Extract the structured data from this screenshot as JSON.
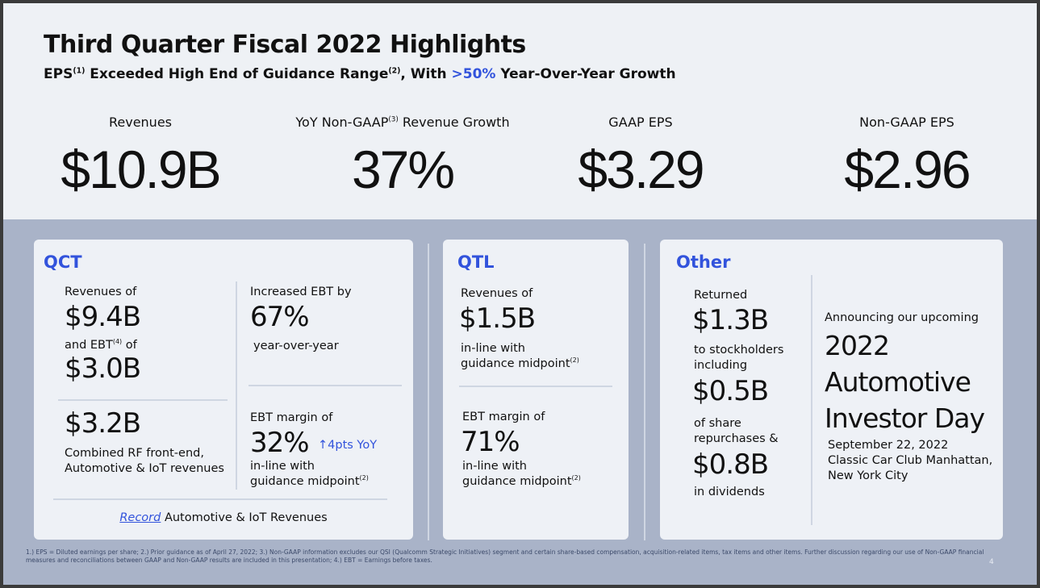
{
  "title": "Third Quarter Fiscal 2022 Highlights",
  "subtitle": {
    "a": "EPS",
    "a_sup": "(1)",
    "b": " Exceeded High End of Guidance Range",
    "b_sup": "(2)",
    "c": ", With ",
    "highlight": ">50%",
    "d": " Year-Over-Year Growth"
  },
  "kpis": [
    {
      "label": "Revenues",
      "value": "$10.9B"
    },
    {
      "label": "YoY Non-GAAP",
      "label_sup": "(3)",
      "label2": " Revenue Growth",
      "value": "37%"
    },
    {
      "label": "GAAP EPS",
      "value": "$3.29"
    },
    {
      "label": "Non-GAAP EPS",
      "value": "$2.96"
    }
  ],
  "qct": {
    "title": "QCT",
    "rev_label": "Revenues of",
    "rev": "$9.4B",
    "ebt_label": "and EBT",
    "ebt_sup": "(4)",
    "ebt_of": " of",
    "ebt": "$3.0B",
    "combined": "$3.2B",
    "combined_l1": "Combined RF front-end,",
    "combined_l2": "Automotive & IoT revenues",
    "inc_label": "Increased EBT by",
    "inc": "67%",
    "inc_sub": "year-over-year",
    "margin_label": "EBT margin of",
    "margin": "32%",
    "margin_delta": "↑4pts YoY",
    "inline1": "in-line with",
    "inline2": "guidance midpoint",
    "inline_sup": "(2)",
    "record": "Record",
    "record_rest": " Automotive & IoT Revenues"
  },
  "qtl": {
    "title": "QTL",
    "rev_label": "Revenues of",
    "rev": "$1.5B",
    "inline1": "in-line with",
    "inline2": "guidance midpoint",
    "sup": "(2)",
    "margin_label": "EBT margin of",
    "margin": "71%",
    "m_inline1": "in-line with",
    "m_inline2": "guidance midpoint",
    "m_sup": "(2)"
  },
  "other": {
    "title": "Other",
    "returned": "Returned",
    "returned_val": "$1.3B",
    "to1": "to stockholders",
    "to2": "including",
    "share_val": "$0.5B",
    "share1": "of share",
    "share2": "repurchases &",
    "div_val": "$0.8B",
    "div": "in dividends",
    "announce": "Announcing our upcoming",
    "event1": "2022",
    "event2": "Automotive",
    "event3": "Investor Day",
    "date": "September 22, 2022",
    "venue1": "Classic Car Club Manhattan,",
    "venue2": "New York City"
  },
  "footnote": "1.) EPS = Diluted earnings per share; 2.) Prior guidance as of April 27, 2022; 3.) Non-GAAP information excludes our QSI (Qualcomm Strategic Initiatives) segment and certain share-based compensation, acquisition-related items, tax items and other items. Further discussion regarding our use of Non-GAAP financial measures and reconciliations between GAAP and Non-GAAP results are included in this presentation; 4.) EBT = Earnings before taxes.",
  "page_number": "4"
}
